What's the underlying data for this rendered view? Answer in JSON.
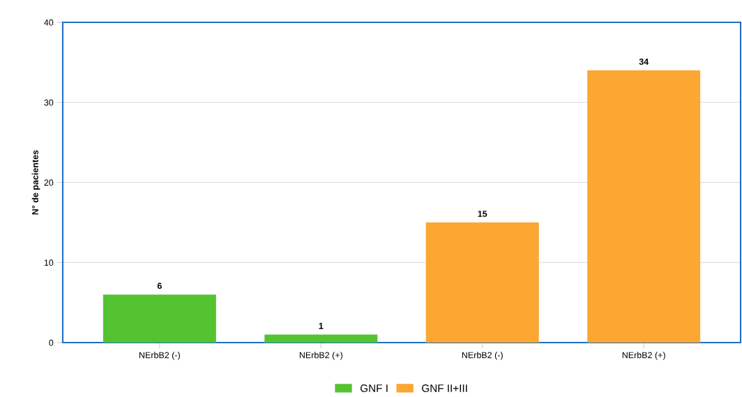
{
  "chart_data": {
    "type": "bar",
    "ylabel": "N° de pacientes",
    "categories": [
      "NErbB2 (-)",
      "NErbB2 (+)",
      "NErbB2 (-)",
      "NErbB2 (+)"
    ],
    "series": [
      {
        "name": "GNF I",
        "color": "#55c232",
        "values": [
          6,
          1,
          null,
          null
        ]
      },
      {
        "name": "GNF II+III",
        "color": "#fba732",
        "values": [
          null,
          null,
          15,
          34
        ]
      }
    ],
    "ylim": [
      0,
      40
    ],
    "yticks": [
      0,
      10,
      20,
      30,
      40
    ],
    "grid": "y",
    "legend": "bottom",
    "data_labels": true
  }
}
